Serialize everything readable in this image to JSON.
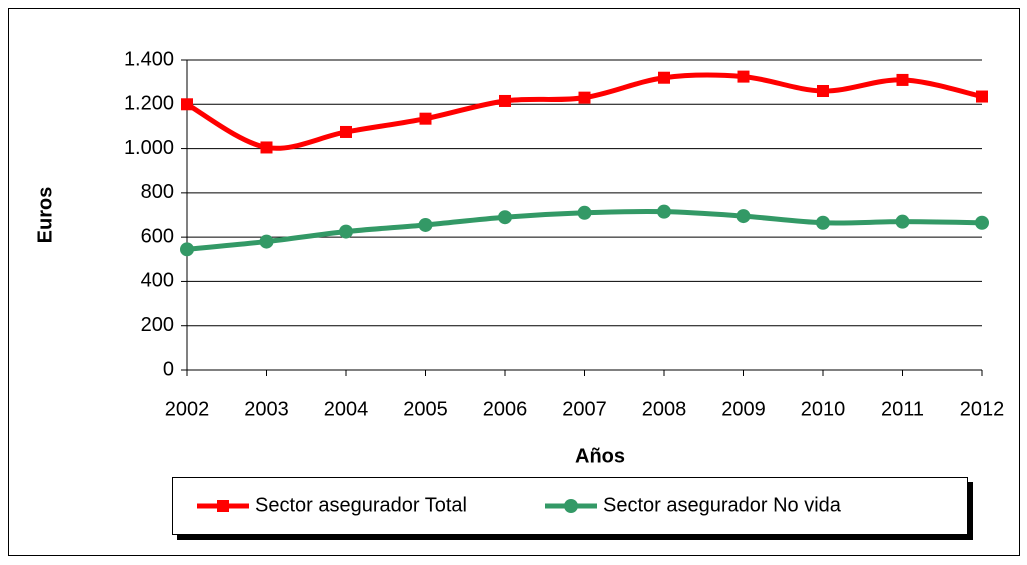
{
  "chart_data": {
    "type": "line",
    "x_label": "Años",
    "y_label": "Euros",
    "categories": [
      "2002",
      "2003",
      "2004",
      "2005",
      "2006",
      "2007",
      "2008",
      "2009",
      "2010",
      "2011",
      "2012"
    ],
    "series": [
      {
        "name": "Sector asegurador Total",
        "color": "#ff0000",
        "marker": "square",
        "values": [
          1200,
          1005,
          1075,
          1135,
          1215,
          1230,
          1320,
          1325,
          1260,
          1310,
          1235
        ]
      },
      {
        "name": "Sector asegurador No vida",
        "color": "#339966",
        "marker": "circle",
        "values": [
          545,
          580,
          625,
          655,
          690,
          710,
          715,
          695,
          665,
          670,
          665
        ]
      }
    ],
    "ylim": [
      0,
      1400
    ],
    "yticks": [
      0,
      200,
      400,
      600,
      800,
      {
        "value": 1000,
        "label": "1.000"
      },
      {
        "value": 1200,
        "label": "1.200"
      },
      {
        "value": 1400,
        "label": "1.400"
      }
    ],
    "grid": true,
    "smooth": true,
    "legend": "bottom"
  }
}
